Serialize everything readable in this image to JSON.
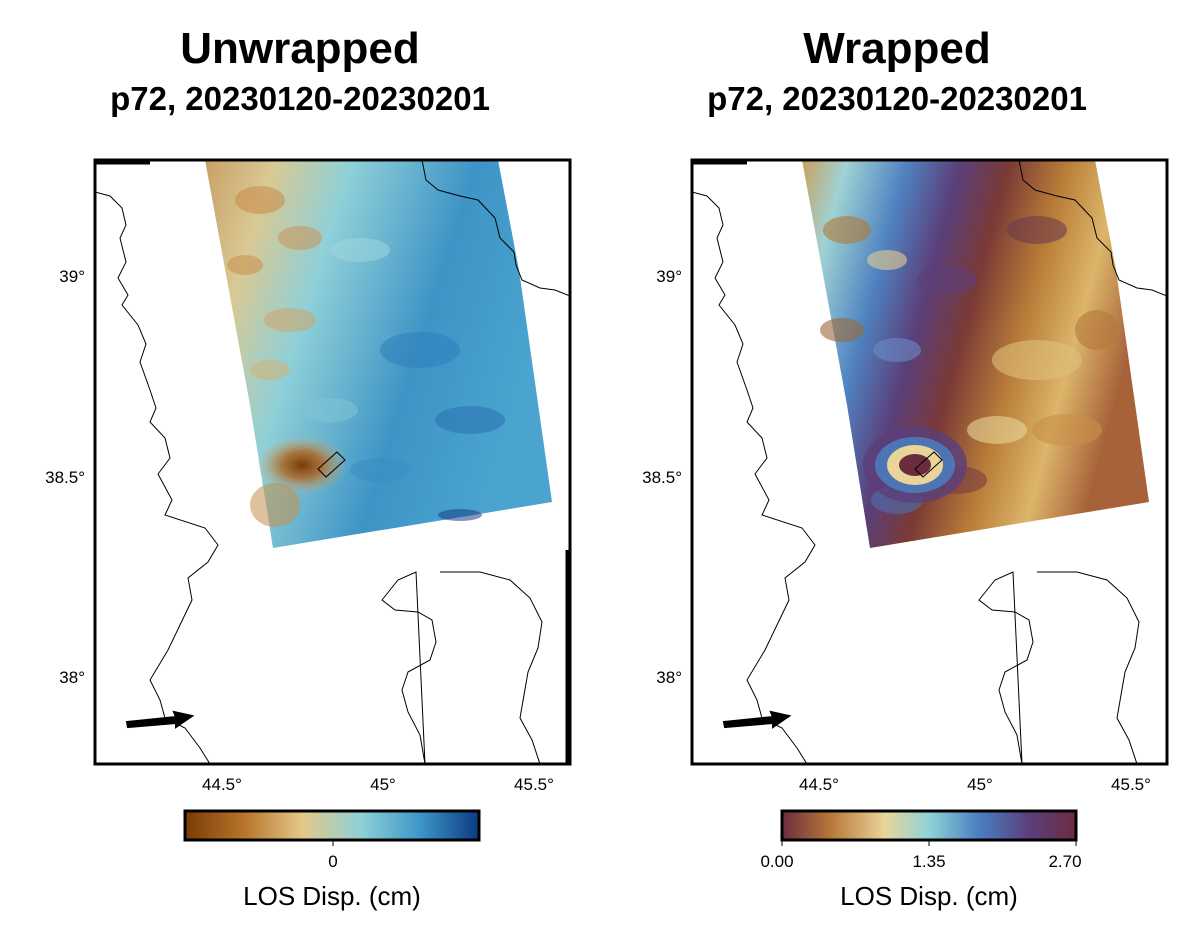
{
  "panels": [
    {
      "title": "Unwrapped",
      "subtitle": "p72, 20230120-20230201",
      "y_ticks": [
        "39°",
        "38.5°",
        "38°"
      ],
      "x_ticks": [
        "44.5°",
        "45°",
        "45.5°"
      ],
      "colorbar": {
        "ticks": [
          "0"
        ],
        "label": "LOS Disp. (cm)",
        "colors": [
          "#7a3b06",
          "#b8742a",
          "#e3c98a",
          "#8ed0d6",
          "#3d96c8",
          "#0c3a82"
        ]
      }
    },
    {
      "title": "Wrapped",
      "subtitle": "p72, 20230120-20230201",
      "y_ticks": [
        "39°",
        "38.5°",
        "38°"
      ],
      "x_ticks": [
        "44.5°",
        "45°",
        "45.5°"
      ],
      "colorbar": {
        "ticks": [
          "0.00",
          "1.35",
          "2.70"
        ],
        "label": "LOS Disp. (cm)",
        "colors": [
          "#6b2c3e",
          "#b87a3a",
          "#e9d49a",
          "#8fd3d8",
          "#4a7fc0",
          "#5b3f7c",
          "#6b2c3e"
        ]
      }
    }
  ]
}
